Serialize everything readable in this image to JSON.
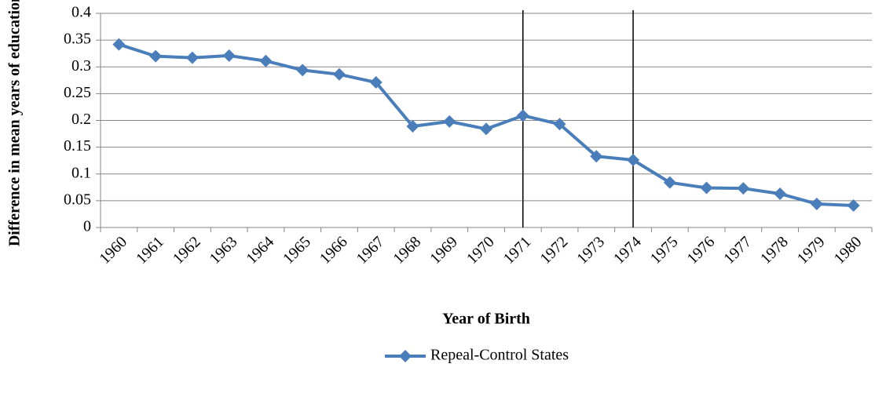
{
  "chart_data": {
    "type": "line",
    "x_label": "Year of Birth",
    "y_label": "Difference in mean years of education",
    "categories": [
      "1960",
      "1961",
      "1962",
      "1963",
      "1964",
      "1965",
      "1966",
      "1967",
      "1968",
      "1969",
      "1970",
      "1971",
      "1972",
      "1973",
      "1974",
      "1975",
      "1976",
      "1977",
      "1978",
      "1979",
      "1980"
    ],
    "series": [
      {
        "name": "Repeal-Control States",
        "color": "#4a7ebb",
        "values": [
          0.342,
          0.32,
          0.317,
          0.321,
          0.311,
          0.294,
          0.286,
          0.271,
          0.189,
          0.198,
          0.184,
          0.209,
          0.193,
          0.133,
          0.126,
          0.084,
          0.074,
          0.073,
          0.063,
          0.044,
          0.041
        ]
      }
    ],
    "ylim": [
      0,
      0.4
    ],
    "yticks": [
      0,
      0.05,
      0.1,
      0.15,
      0.2,
      0.25,
      0.3,
      0.35,
      0.4
    ],
    "grid": true,
    "vlines": [
      "1971",
      "1974"
    ],
    "legend": "bottom"
  }
}
